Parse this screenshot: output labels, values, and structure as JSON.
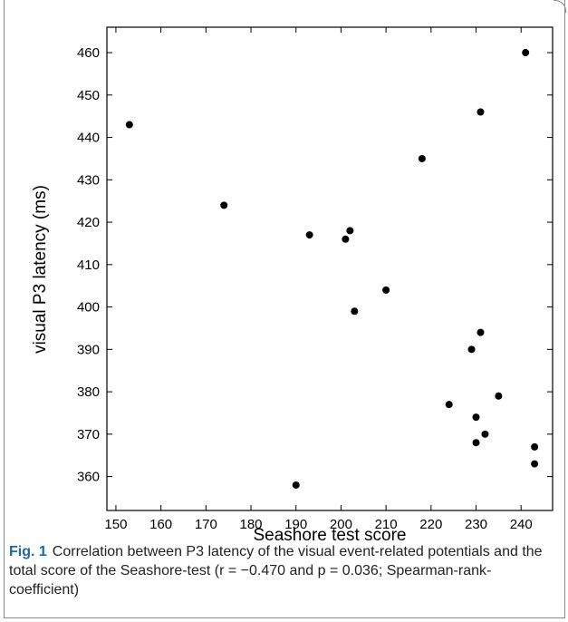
{
  "chart_data": {
    "type": "scatter",
    "xlabel": "Seashore test score",
    "ylabel": "visual P3 latency (ms)",
    "xlim": [
      148,
      247
    ],
    "ylim": [
      352,
      466
    ],
    "xticks": [
      150,
      160,
      170,
      180,
      190,
      200,
      210,
      220,
      230,
      240
    ],
    "yticks": [
      360,
      370,
      380,
      390,
      400,
      410,
      420,
      430,
      440,
      450,
      460
    ],
    "grid": false,
    "points": [
      {
        "x": 153,
        "y": 443
      },
      {
        "x": 174,
        "y": 424
      },
      {
        "x": 190,
        "y": 358
      },
      {
        "x": 193,
        "y": 417
      },
      {
        "x": 201,
        "y": 416
      },
      {
        "x": 202,
        "y": 418
      },
      {
        "x": 203,
        "y": 399
      },
      {
        "x": 210,
        "y": 404
      },
      {
        "x": 218,
        "y": 435
      },
      {
        "x": 224,
        "y": 377
      },
      {
        "x": 229,
        "y": 390
      },
      {
        "x": 230,
        "y": 374
      },
      {
        "x": 230,
        "y": 368
      },
      {
        "x": 231,
        "y": 394
      },
      {
        "x": 231,
        "y": 446
      },
      {
        "x": 232,
        "y": 370
      },
      {
        "x": 235,
        "y": 379
      },
      {
        "x": 241,
        "y": 460
      },
      {
        "x": 243,
        "y": 367
      },
      {
        "x": 243,
        "y": 363
      }
    ]
  },
  "caption": {
    "label": "Fig. 1",
    "text": "Correlation between P3 latency of the visual event-related potentials and the total score of the Seashore-test (r = −0.470 and p = 0.036; Spearman-rank-coefficient)"
  },
  "colors": {
    "point": "#000000",
    "figure_label": "#1f66a8",
    "frame": "#8a8a8a"
  }
}
